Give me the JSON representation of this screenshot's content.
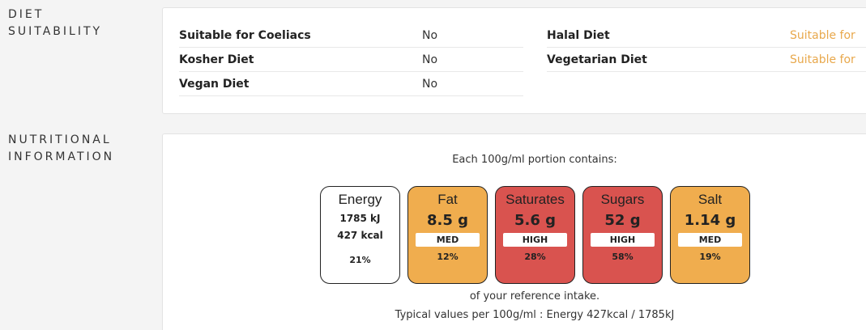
{
  "diet": {
    "heading_line1": "DIET",
    "heading_line2": "SUITABILITY",
    "left": [
      {
        "label": "Suitable for Coeliacs",
        "value": "No"
      },
      {
        "label": "Kosher Diet",
        "value": "No"
      },
      {
        "label": "Vegan Diet",
        "value": "No"
      }
    ],
    "right": [
      {
        "label": "Halal Diet",
        "value": "Suitable for"
      },
      {
        "label": "Vegetarian Diet",
        "value": "Suitable for"
      }
    ]
  },
  "nutrition": {
    "heading_line1": "NUTRITIONAL",
    "heading_line2": "INFORMATION",
    "portion_text": "Each 100g/ml portion contains:",
    "items": [
      {
        "name": "Energy",
        "kj": "1785 kJ",
        "kcal": "427 kcal",
        "percent": "21%",
        "color": "#ffffff"
      },
      {
        "name": "Fat",
        "amount": "8.5 g",
        "level": "MED",
        "percent": "12%",
        "color": "#f0ad4e"
      },
      {
        "name": "Saturates",
        "amount": "5.6 g",
        "level": "HIGH",
        "percent": "28%",
        "color": "#d9534f"
      },
      {
        "name": "Sugars",
        "amount": "52 g",
        "level": "HIGH",
        "percent": "58%",
        "color": "#d9534f"
      },
      {
        "name": "Salt",
        "amount": "1.14 g",
        "level": "MED",
        "percent": "19%",
        "color": "#f0ad4e"
      }
    ],
    "reference_text": "of your reference intake.",
    "typical_text": "Typical values per 100g/ml : Energy 427kcal / 1785kJ"
  },
  "colors": {
    "suitable": "#e8a84c",
    "page_bg": "#f4f4f4"
  }
}
